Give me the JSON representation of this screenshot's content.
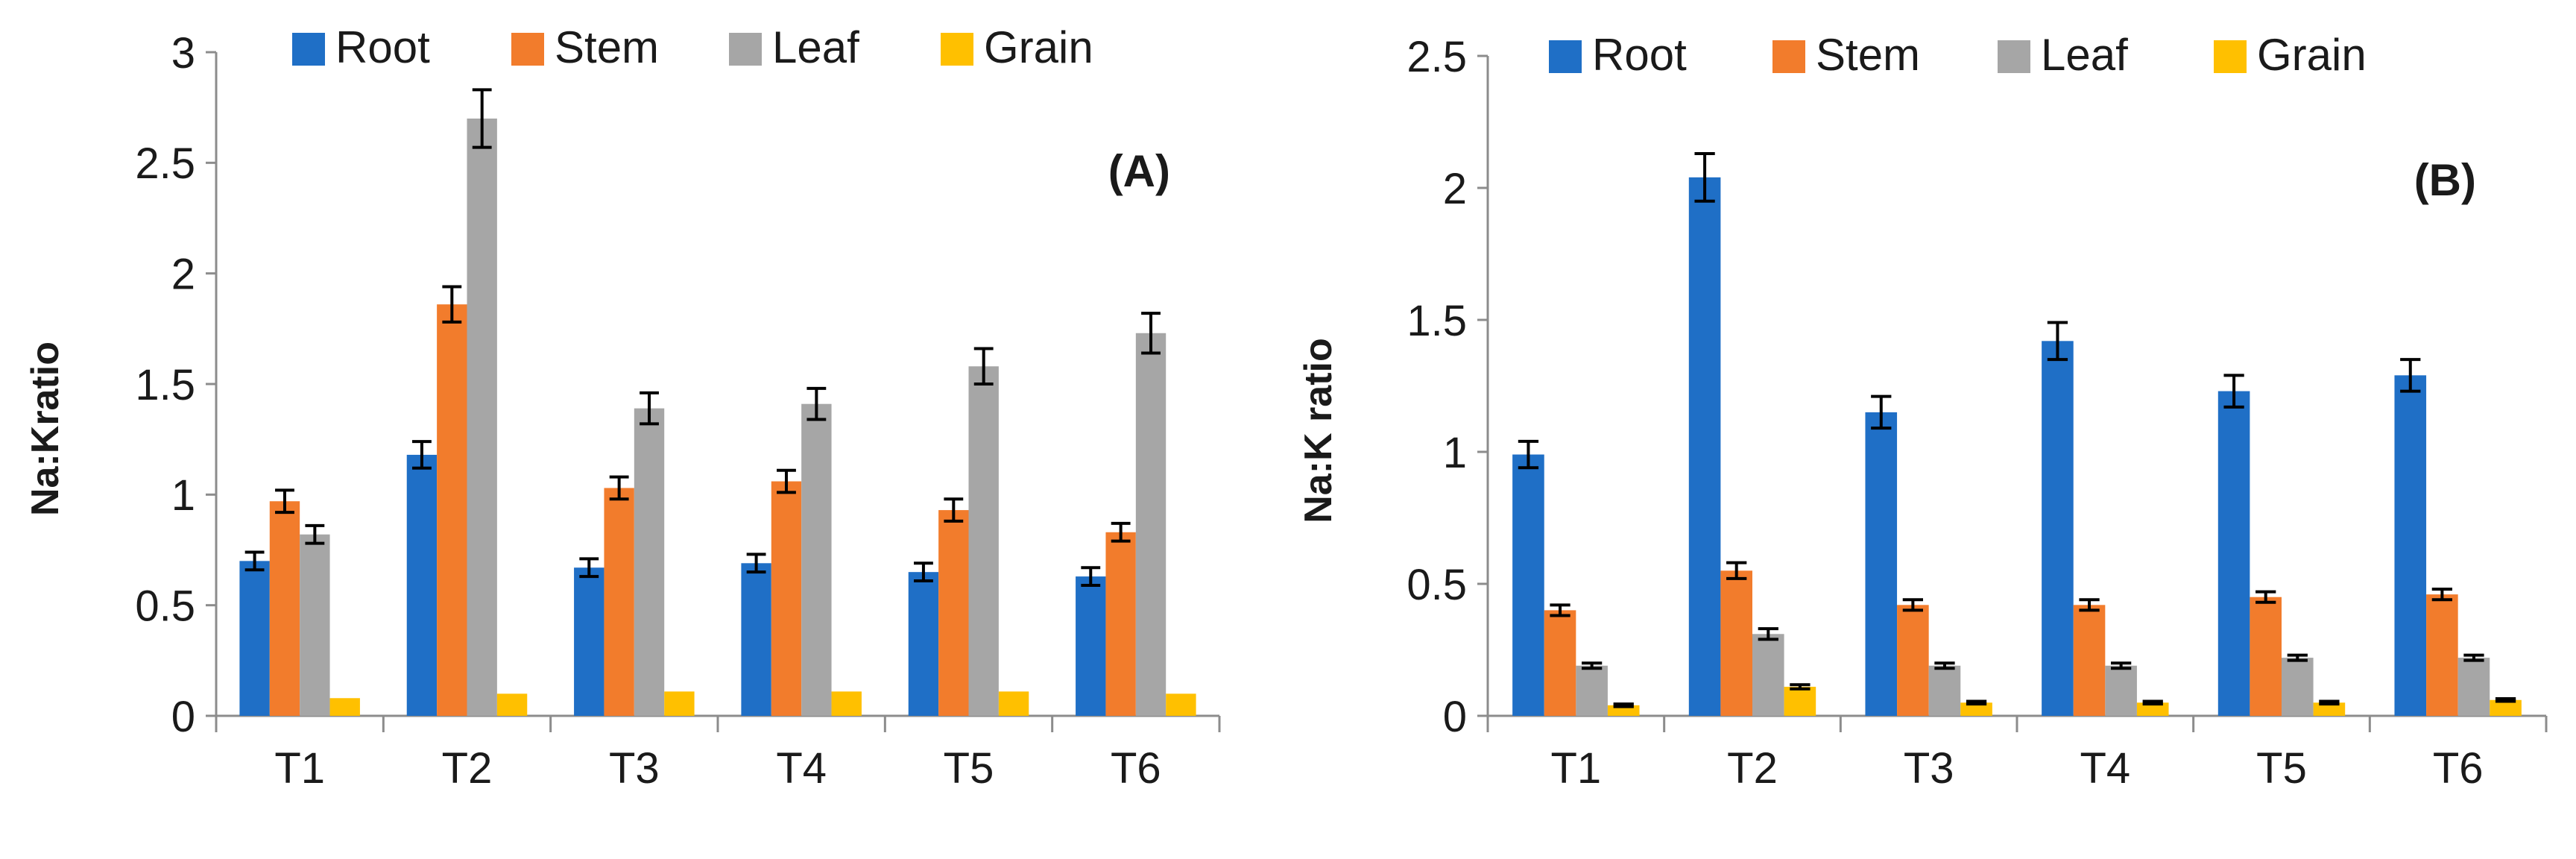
{
  "chart_data": [
    {
      "type": "bar",
      "panel_label": "(A)",
      "ylabel": "Na:Kratio",
      "xlabel": "",
      "categories": [
        "T1",
        "T2",
        "T3",
        "T4",
        "T5",
        "T6"
      ],
      "ylim": [
        0,
        3
      ],
      "ytick_values": [
        0,
        0.5,
        1,
        1.5,
        2,
        2.5,
        3
      ],
      "ytick_labels": [
        "0",
        "0.5",
        "1",
        "1.5",
        "2",
        "2.5",
        "3"
      ],
      "grid": false,
      "legend_position": "top",
      "series": [
        {
          "name": "Root",
          "color": "#1f6fc6",
          "values": [
            0.7,
            1.18,
            0.67,
            0.69,
            0.65,
            0.63
          ],
          "errors": [
            0.04,
            0.06,
            0.04,
            0.04,
            0.04,
            0.04
          ]
        },
        {
          "name": "Stem",
          "color": "#f27c2c",
          "values": [
            0.97,
            1.86,
            1.03,
            1.06,
            0.93,
            0.83
          ],
          "errors": [
            0.05,
            0.08,
            0.05,
            0.05,
            0.05,
            0.04
          ]
        },
        {
          "name": "Leaf",
          "color": "#a6a6a6",
          "values": [
            0.82,
            2.7,
            1.39,
            1.41,
            1.58,
            1.73
          ],
          "errors": [
            0.04,
            0.13,
            0.07,
            0.07,
            0.08,
            0.09
          ]
        },
        {
          "name": "Grain",
          "color": "#ffc000",
          "values": [
            0.08,
            0.1,
            0.11,
            0.11,
            0.11,
            0.1
          ],
          "errors": [
            0,
            0,
            0,
            0,
            0,
            0
          ]
        }
      ]
    },
    {
      "type": "bar",
      "panel_label": "(B)",
      "ylabel": "Na:K ratio",
      "xlabel": "",
      "categories": [
        "T1",
        "T2",
        "T3",
        "T4",
        "T5",
        "T6"
      ],
      "ylim": [
        0,
        2.5
      ],
      "ytick_values": [
        0,
        0.5,
        1,
        1.5,
        2,
        2.5
      ],
      "ytick_labels": [
        "0",
        "0.5",
        "1",
        "1.5",
        "2",
        "2.5"
      ],
      "grid": false,
      "legend_position": "top",
      "series": [
        {
          "name": "Root",
          "color": "#1f6fc6",
          "values": [
            0.99,
            2.04,
            1.15,
            1.42,
            1.23,
            1.29
          ],
          "errors": [
            0.05,
            0.09,
            0.06,
            0.07,
            0.06,
            0.06
          ]
        },
        {
          "name": "Stem",
          "color": "#f27c2c",
          "values": [
            0.4,
            0.55,
            0.42,
            0.42,
            0.45,
            0.46
          ],
          "errors": [
            0.02,
            0.03,
            0.02,
            0.02,
            0.02,
            0.02
          ]
        },
        {
          "name": "Leaf",
          "color": "#a6a6a6",
          "values": [
            0.19,
            0.31,
            0.19,
            0.19,
            0.22,
            0.22
          ],
          "errors": [
            0.01,
            0.02,
            0.01,
            0.01,
            0.01,
            0.01
          ]
        },
        {
          "name": "Grain",
          "color": "#ffc000",
          "values": [
            0.04,
            0.11,
            0.05,
            0.05,
            0.05,
            0.06
          ],
          "errors": [
            0.005,
            0.008,
            0.005,
            0.005,
            0.005,
            0.005
          ]
        }
      ]
    }
  ]
}
